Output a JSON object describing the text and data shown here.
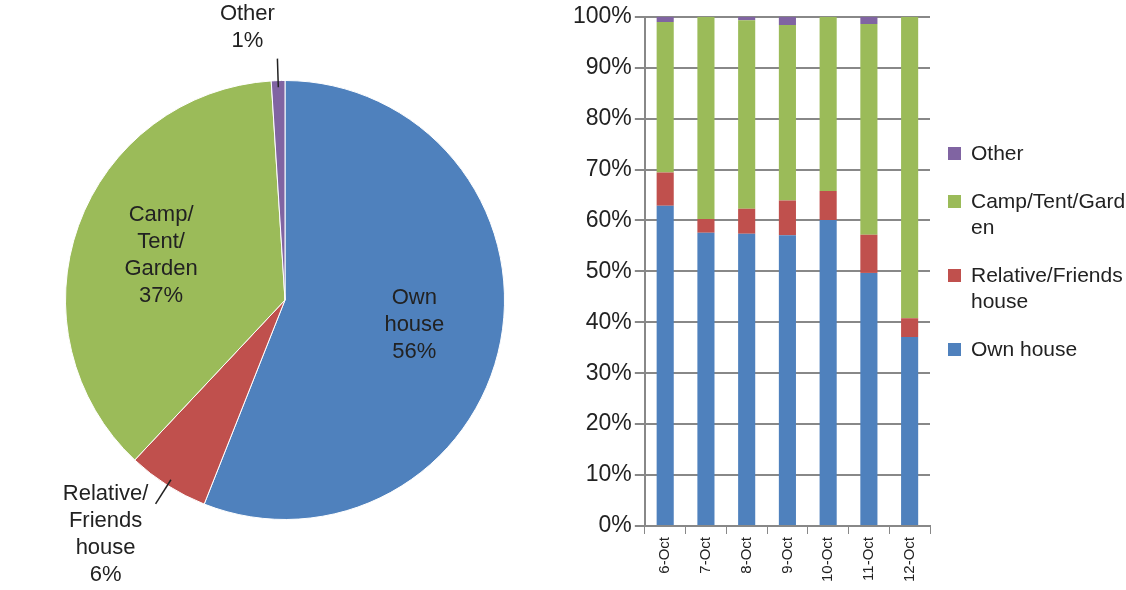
{
  "chart_data": [
    {
      "type": "pie",
      "categories": [
        "Own house",
        "Relative/Friends house",
        "Camp/Tent/Garden",
        "Other"
      ],
      "values": [
        56,
        6,
        37,
        1
      ],
      "colors": [
        "#4f81bd",
        "#c0504d",
        "#9bbb59",
        "#8064a2"
      ],
      "value_labels": [
        "56%",
        "6%",
        "37%",
        "1%"
      ],
      "legend": false
    },
    {
      "type": "bar",
      "stacked": true,
      "categories": [
        "6-Oct",
        "7-Oct",
        "8-Oct",
        "9-Oct",
        "10-Oct",
        "11-Oct",
        "12-Oct"
      ],
      "series": [
        {
          "name": "Own house",
          "color": "#4f81bd",
          "values": [
            62.9,
            57.6,
            57.4,
            57.1,
            60.1,
            49.7,
            37.1
          ]
        },
        {
          "name": "Relative/Friends house",
          "color": "#c0504d",
          "values": [
            6.5,
            2.7,
            4.9,
            6.8,
            5.7,
            7.5,
            3.7
          ]
        },
        {
          "name": "Camp/Tent/Garden",
          "color": "#9bbb59",
          "values": [
            29.6,
            39.7,
            37.0,
            34.5,
            34.2,
            41.4,
            59.2
          ]
        },
        {
          "name": "Other",
          "color": "#8064a2",
          "values": [
            1.0,
            0,
            0.7,
            1.6,
            0,
            1.4,
            0
          ]
        }
      ],
      "ylim": [
        0,
        100
      ],
      "yticks": [
        {
          "value": 0,
          "label": "0%"
        },
        {
          "value": 10,
          "label": "10%"
        },
        {
          "value": 20,
          "label": "20%"
        },
        {
          "value": 30,
          "label": "30%"
        },
        {
          "value": 40,
          "label": "40%"
        },
        {
          "value": 50,
          "label": "50%"
        },
        {
          "value": 60,
          "label": "60%"
        },
        {
          "value": 70,
          "label": "70%"
        },
        {
          "value": 80,
          "label": "80%"
        },
        {
          "value": 90,
          "label": "90%"
        },
        {
          "value": 100,
          "label": "100%"
        }
      ],
      "grid": "y",
      "legend": "right"
    }
  ]
}
